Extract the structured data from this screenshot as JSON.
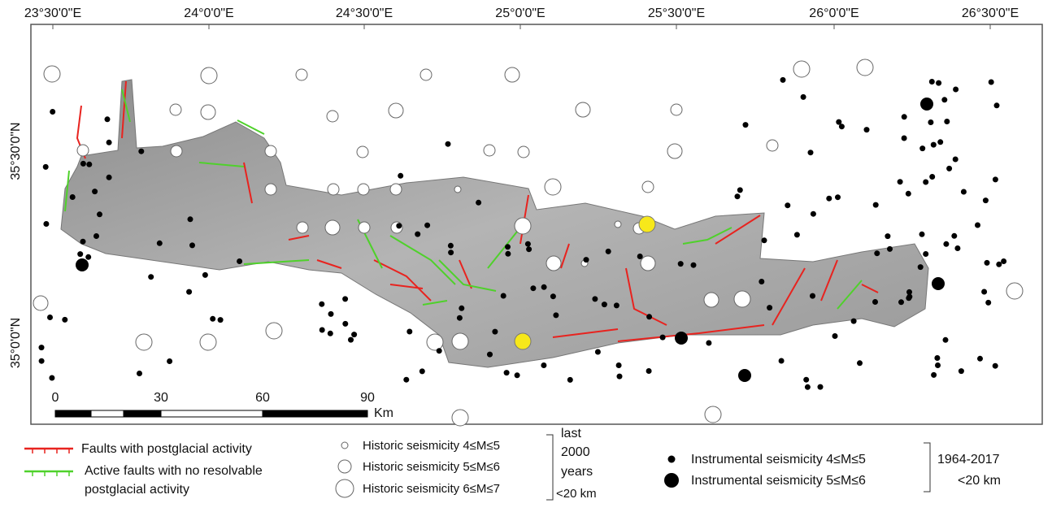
{
  "map": {
    "longitude_labels": [
      "23°30'0\"E",
      "24°0'0\"E",
      "24°30'0\"E",
      "25°0'0\"E",
      "25°30'0\"E",
      "26°0'0\"E",
      "26°30'0\"E"
    ],
    "latitude_labels": [
      "35°30'0\"N",
      "35°0'0\"N"
    ],
    "scale_bar": {
      "labels": [
        "0",
        "30",
        "60",
        "90"
      ],
      "unit": "Km"
    }
  },
  "legend": {
    "faults": {
      "postglacial": "Faults with postglacial activity",
      "no_resolvable": [
        "Active faults with no resolvable",
        "postglacial activity"
      ]
    },
    "historic": [
      "Historic seismicity 4≤M≤5",
      "Historic seismicity 5≤M≤6",
      "Historic seismicity 6≤M≤7"
    ],
    "historic_period": [
      "last",
      "2000",
      "years",
      "<20 km"
    ],
    "instrumental": [
      "Instrumental seismicity 4≤M≤5",
      "Instrumental seismicity 5≤M≤6"
    ],
    "instrumental_period": [
      "1964-2017",
      "<20 km"
    ]
  }
}
